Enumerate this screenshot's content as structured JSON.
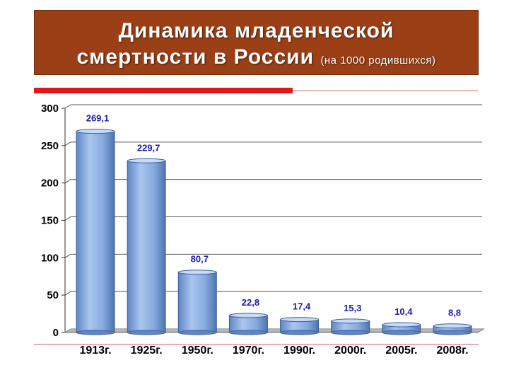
{
  "slide": {
    "title_line1": "Динамика младенческой",
    "title_line2": "смертности в России",
    "title_sub": "(на 1000 родившихся)"
  },
  "colors": {
    "title_bg": "#9b3f16",
    "accent_red": "#e0181c",
    "bar_fill": "#7fa6dc",
    "data_label": "#1a1aa8"
  },
  "chart_data": {
    "type": "bar",
    "categories": [
      "1913г.",
      "1925г.",
      "1950г.",
      "1970г.",
      "1990г.",
      "2000г.",
      "2005г.",
      "2008г."
    ],
    "values": [
      269.1,
      229.7,
      80.7,
      22.8,
      17.4,
      15.3,
      10.4,
      8.8
    ],
    "data_labels": [
      "269,1",
      "229,7",
      "80,7",
      "22,8",
      "17,4",
      "15,3",
      "10,4",
      "8,8"
    ],
    "y_ticks": [
      "0",
      "50",
      "100",
      "150",
      "200",
      "250",
      "300"
    ],
    "ylim": [
      0,
      300
    ],
    "grid": true,
    "style": "3d-cylinder"
  }
}
